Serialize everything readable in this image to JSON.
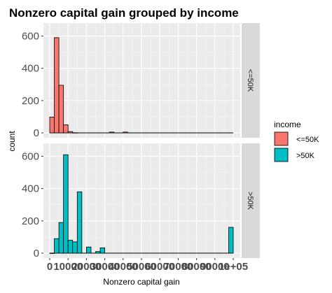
{
  "chart_data": {
    "type": "bar",
    "title": "Nonzero capital gain grouped by income",
    "xlabel": "Nonzero capital gain",
    "ylabel": "count",
    "x_ticks": [
      "0",
      "10000",
      "20000",
      "30000",
      "40000",
      "50000",
      "60000",
      "70000",
      "80000",
      "90000",
      "1e+05"
    ],
    "xlim": [
      0,
      100000
    ],
    "ylim": [
      0,
      650
    ],
    "y_ticks": [
      0,
      200,
      400,
      600
    ],
    "bin_width": 2500,
    "legend": {
      "title": "income",
      "position": "right",
      "items": [
        {
          "label": "<=50K",
          "color": "#F8766D"
        },
        {
          "label": ">50K",
          "color": "#00BFC4"
        }
      ]
    },
    "facets": [
      {
        "strip": "<=50K",
        "color": "#F8766D",
        "bins": [
          {
            "x": 0,
            "count": 98
          },
          {
            "x": 2500,
            "count": 590
          },
          {
            "x": 5000,
            "count": 295
          },
          {
            "x": 7500,
            "count": 50
          },
          {
            "x": 10000,
            "count": 8
          },
          {
            "x": 12500,
            "count": 1
          },
          {
            "x": 32500,
            "count": 5
          },
          {
            "x": 40000,
            "count": 5
          }
        ]
      },
      {
        "strip": ">50K",
        "color": "#00BFC4",
        "bins": [
          {
            "x": 0,
            "count": 0
          },
          {
            "x": 2500,
            "count": 90
          },
          {
            "x": 5000,
            "count": 190
          },
          {
            "x": 7500,
            "count": 610
          },
          {
            "x": 10000,
            "count": 80
          },
          {
            "x": 12500,
            "count": 70
          },
          {
            "x": 15000,
            "count": 380
          },
          {
            "x": 20000,
            "count": 38
          },
          {
            "x": 25000,
            "count": 10
          },
          {
            "x": 27500,
            "count": 33
          },
          {
            "x": 97500,
            "count": 160
          }
        ]
      }
    ]
  }
}
